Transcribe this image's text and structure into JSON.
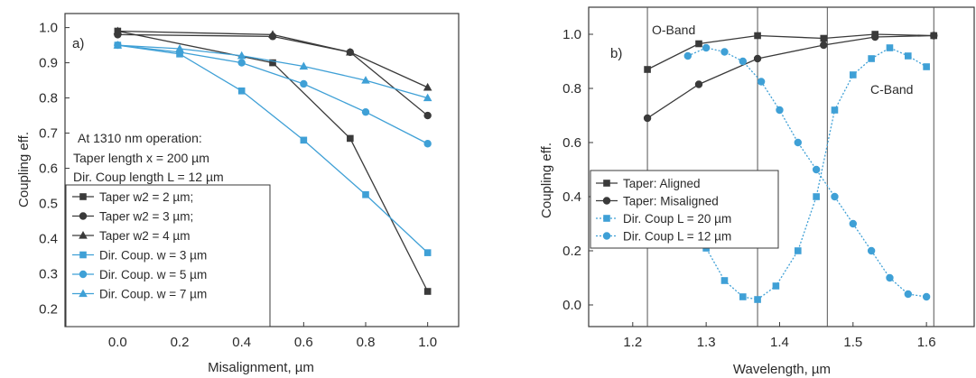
{
  "chart_data": [
    {
      "type": "line",
      "panel_label": "a)",
      "xlabel": "Misalignment, µm",
      "ylabel": "Coupling eff.",
      "xlim": [
        -0.17,
        1.1
      ],
      "ylim": [
        0.15,
        1.04
      ],
      "xticks": [
        "0.0",
        "0.2",
        "0.4",
        "0.6",
        "0.8",
        "1.0"
      ],
      "yticks": [
        "0.2",
        "0.3",
        "0.4",
        "0.5",
        "0.6",
        "0.7",
        "0.8",
        "0.9",
        "1.0"
      ],
      "grid": false,
      "annotations": [
        "At 1310 nm operation:",
        "Taper length x = 200 µm",
        "Dir. Coup length L = 12 µm"
      ],
      "legend_position": "bottom-left",
      "series": [
        {
          "name": "Taper w2 = 2 µm;",
          "color": "#3a3a3a",
          "marker": "square",
          "dashed": false,
          "x": [
            0.0,
            0.5,
            0.75,
            1.0
          ],
          "values": [
            0.99,
            0.9,
            0.685,
            0.25
          ]
        },
        {
          "name": "Taper w2 = 3 µm;",
          "color": "#3a3a3a",
          "marker": "circle",
          "dashed": false,
          "x": [
            0.0,
            0.5,
            0.75,
            1.0
          ],
          "values": [
            0.98,
            0.975,
            0.93,
            0.75
          ]
        },
        {
          "name": "Taper w2 = 4 µm",
          "color": "#3a3a3a",
          "marker": "triangle",
          "dashed": false,
          "x": [
            0.0,
            0.5,
            0.75,
            1.0
          ],
          "values": [
            0.99,
            0.98,
            0.93,
            0.83
          ]
        },
        {
          "name": "Dir. Coup. w = 3 µm",
          "color": "#3fa0d6",
          "marker": "square",
          "dashed": false,
          "x": [
            0.0,
            0.2,
            0.4,
            0.6,
            0.8,
            1.0
          ],
          "values": [
            0.95,
            0.925,
            0.82,
            0.68,
            0.525,
            0.36
          ]
        },
        {
          "name": "Dir. Coup. w = 5 µm",
          "color": "#3fa0d6",
          "marker": "circle",
          "dashed": false,
          "x": [
            0.0,
            0.2,
            0.4,
            0.6,
            0.8,
            1.0
          ],
          "values": [
            0.95,
            0.93,
            0.9,
            0.84,
            0.76,
            0.67
          ]
        },
        {
          "name": "Dir. Coup. w = 7 µm",
          "color": "#3fa0d6",
          "marker": "triangle",
          "dashed": false,
          "x": [
            0.0,
            0.2,
            0.4,
            0.6,
            0.8,
            1.0
          ],
          "values": [
            0.95,
            0.94,
            0.92,
            0.89,
            0.85,
            0.8
          ]
        }
      ]
    },
    {
      "type": "line",
      "panel_label": "b)",
      "xlabel": "Wavelength, µm",
      "ylabel": "Coupling eff.",
      "xlim": [
        1.14,
        1.665
      ],
      "ylim": [
        -0.08,
        1.1
      ],
      "xticks": [
        "1.2",
        "1.3",
        "1.4",
        "1.5",
        "1.6"
      ],
      "yticks": [
        "0.0",
        "0.2",
        "0.4",
        "0.6",
        "0.8",
        "1.0"
      ],
      "grid": false,
      "band_lines_x": [
        1.22,
        1.37,
        1.465,
        1.61
      ],
      "annotations": [
        "O-Band",
        "C-Band"
      ],
      "legend_position": "middle-left",
      "series": [
        {
          "name": "Taper: Aligned",
          "color": "#3a3a3a",
          "marker": "square",
          "dashed": false,
          "x": [
            1.22,
            1.29,
            1.37,
            1.46,
            1.53,
            1.61
          ],
          "values": [
            0.87,
            0.965,
            0.995,
            0.985,
            1.0,
            0.995
          ]
        },
        {
          "name": "Taper: Misaligned",
          "color": "#3a3a3a",
          "marker": "circle",
          "dashed": false,
          "x": [
            1.22,
            1.29,
            1.37,
            1.46,
            1.53,
            1.61
          ],
          "values": [
            0.69,
            0.815,
            0.91,
            0.96,
            0.99,
            0.995
          ]
        },
        {
          "name": "Dir. Coup L = 20 µm",
          "color": "#3fa0d6",
          "marker": "square",
          "dashed": true,
          "x": [
            1.275,
            1.3,
            1.325,
            1.35,
            1.37,
            1.395,
            1.425,
            1.45,
            1.475,
            1.5,
            1.525,
            1.55,
            1.575,
            1.6
          ],
          "values": [
            0.38,
            0.21,
            0.09,
            0.03,
            0.02,
            0.07,
            0.2,
            0.4,
            0.72,
            0.85,
            0.91,
            0.95,
            0.92,
            0.88
          ]
        },
        {
          "name": "Dir. Coup L = 12 µm",
          "color": "#3fa0d6",
          "marker": "circle",
          "dashed": true,
          "x": [
            1.275,
            1.3,
            1.325,
            1.35,
            1.375,
            1.4,
            1.425,
            1.45,
            1.475,
            1.5,
            1.525,
            1.55,
            1.575,
            1.6
          ],
          "values": [
            0.92,
            0.95,
            0.935,
            0.9,
            0.825,
            0.72,
            0.6,
            0.5,
            0.4,
            0.3,
            0.2,
            0.1,
            0.04,
            0.03
          ]
        }
      ]
    }
  ]
}
